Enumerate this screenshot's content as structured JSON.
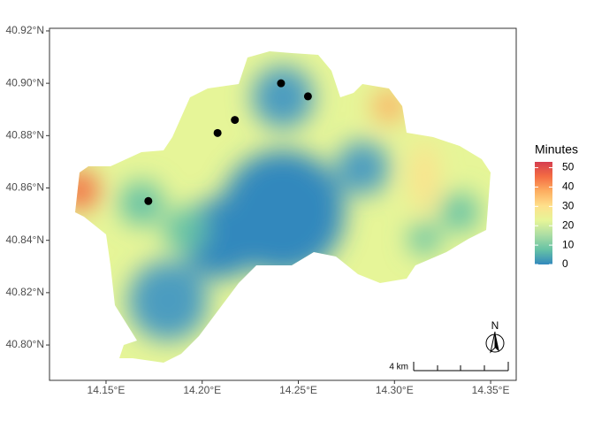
{
  "chart_data": {
    "type": "map",
    "xlim": [
      14.1206,
      14.3633
    ],
    "ylim": [
      40.7865,
      40.921
    ],
    "xticks": [
      {
        "value": 14.15,
        "label": "14.15°E"
      },
      {
        "value": 14.2,
        "label": "14.20°E"
      },
      {
        "value": 14.25,
        "label": "14.25°E"
      },
      {
        "value": 14.3,
        "label": "14.30°E"
      },
      {
        "value": 14.35,
        "label": "14.35°E"
      }
    ],
    "yticks": [
      {
        "value": 40.8,
        "label": "40.80°N"
      },
      {
        "value": 40.82,
        "label": "40.82°N"
      },
      {
        "value": 40.84,
        "label": "40.84°N"
      },
      {
        "value": 40.86,
        "label": "40.86°N"
      },
      {
        "value": 40.88,
        "label": "40.88°N"
      },
      {
        "value": 40.9,
        "label": "40.90°N"
      },
      {
        "value": 40.92,
        "label": "40.92°N"
      }
    ],
    "grid": false,
    "points": {
      "x": [
        14.172,
        14.208,
        14.217,
        14.241,
        14.255
      ],
      "y": [
        40.855,
        40.881,
        40.886,
        40.9,
        40.895
      ],
      "color": "#000000"
    },
    "legend": {
      "title": "Minutes",
      "lim": [
        0,
        53
      ],
      "ticks": [
        0,
        10,
        20,
        30,
        40,
        50
      ],
      "colors": [
        "#3288bd",
        "#66c2a5",
        "#abdda4",
        "#e6f598",
        "#fee08b",
        "#fdae61",
        "#f46d43",
        "#d53e4f"
      ]
    },
    "scale_bar": "4 km",
    "north": "N"
  }
}
